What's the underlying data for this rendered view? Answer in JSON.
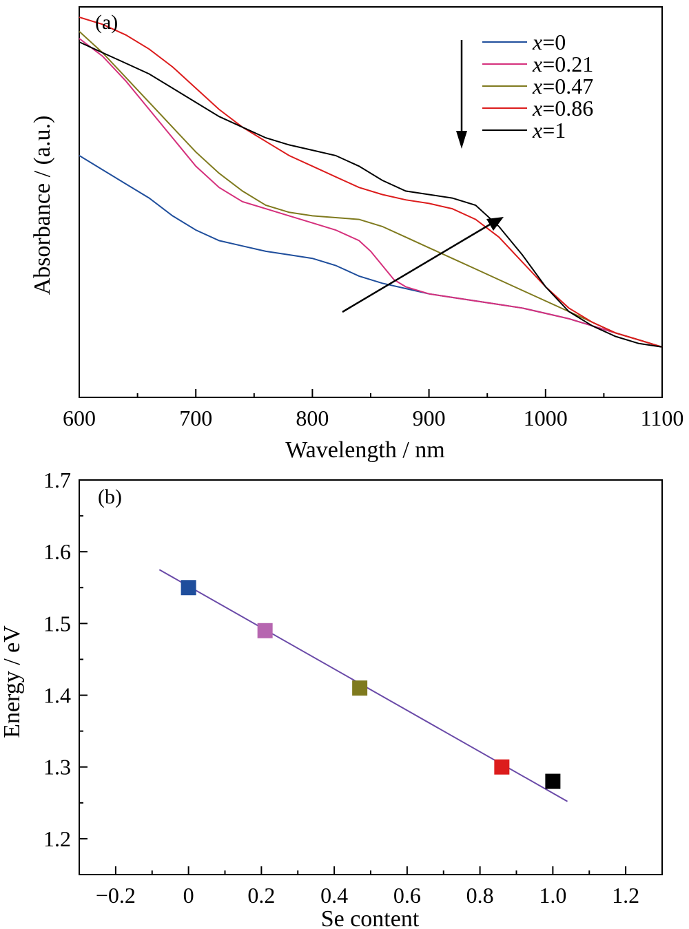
{
  "colors": {
    "blue": "#1f4e9c",
    "magenta": "#d5307c",
    "olive": "#7f7a1e",
    "red": "#dc1c1c",
    "black": "#000000",
    "fit_line": "#6a4aa8",
    "marker_magenta": "#b666b0"
  },
  "chart_data": [
    {
      "type": "line",
      "panel_label": "(a)",
      "xlabel": "Wavelength / nm",
      "ylabel": "Absorbance / (a.u.)",
      "xlim": [
        600,
        1100
      ],
      "ylim": [
        0,
        1
      ],
      "x_ticks": [
        "600",
        "700",
        "800",
        "900",
        "1000",
        "1100"
      ],
      "y_ticks": [],
      "legend_position": "top-right",
      "annotations": [
        "downward arrow beside legend",
        "diagonal arrow from (825 nm) to (960 nm) pointing upper-right"
      ],
      "series": [
        {
          "name": "x=0",
          "legend_prefix": "x",
          "legend_value": "=0",
          "color": "#1f4e9c",
          "x": [
            600,
            620,
            640,
            660,
            680,
            700,
            720,
            740,
            760,
            780,
            800,
            820,
            840,
            860,
            880,
            900,
            920,
            940,
            960,
            980,
            1000,
            1020,
            1040,
            1060,
            1080,
            1100
          ],
          "y": [
            0.61,
            0.57,
            0.53,
            0.49,
            0.44,
            0.4,
            0.37,
            0.355,
            0.34,
            0.33,
            0.32,
            0.3,
            0.27,
            0.25,
            0.235,
            0.22,
            0.21,
            0.2,
            0.19,
            0.18,
            0.165,
            0.15,
            0.13,
            0.11,
            0.09,
            0.07
          ]
        },
        {
          "name": "x=0.21",
          "legend_prefix": "x",
          "legend_value": "=0.21",
          "color": "#d5307c",
          "x": [
            600,
            620,
            640,
            660,
            680,
            700,
            720,
            740,
            760,
            780,
            800,
            820,
            840,
            850,
            860,
            870,
            880,
            900,
            920,
            940,
            960,
            980,
            1000,
            1020,
            1040,
            1060,
            1080,
            1100
          ],
          "y": [
            0.94,
            0.89,
            0.82,
            0.74,
            0.66,
            0.58,
            0.52,
            0.48,
            0.46,
            0.44,
            0.42,
            0.4,
            0.37,
            0.34,
            0.3,
            0.26,
            0.24,
            0.22,
            0.21,
            0.2,
            0.19,
            0.18,
            0.165,
            0.15,
            0.13,
            0.11,
            0.09,
            0.07
          ]
        },
        {
          "name": "x=0.47",
          "legend_prefix": "x",
          "legend_value": "=0.47",
          "color": "#7f7a1e",
          "x": [
            600,
            620,
            640,
            660,
            680,
            700,
            720,
            740,
            760,
            780,
            800,
            820,
            840,
            860,
            880,
            900,
            920,
            940,
            960,
            980,
            1000,
            1020,
            1040,
            1060,
            1080,
            1100
          ],
          "y": [
            0.96,
            0.9,
            0.83,
            0.76,
            0.69,
            0.62,
            0.56,
            0.51,
            0.47,
            0.45,
            0.44,
            0.435,
            0.43,
            0.41,
            0.38,
            0.35,
            0.32,
            0.29,
            0.26,
            0.23,
            0.2,
            0.17,
            0.14,
            0.11,
            0.09,
            0.07
          ]
        },
        {
          "name": "x=0.86",
          "legend_prefix": "x",
          "legend_value": "=0.86",
          "color": "#dc1c1c",
          "x": [
            600,
            620,
            640,
            660,
            680,
            700,
            720,
            740,
            760,
            780,
            800,
            820,
            840,
            860,
            880,
            900,
            920,
            940,
            960,
            980,
            1000,
            1020,
            1040,
            1060,
            1080,
            1100
          ],
          "y": [
            1.0,
            0.98,
            0.95,
            0.91,
            0.86,
            0.8,
            0.74,
            0.69,
            0.65,
            0.61,
            0.58,
            0.55,
            0.52,
            0.5,
            0.485,
            0.475,
            0.46,
            0.43,
            0.38,
            0.31,
            0.24,
            0.18,
            0.14,
            0.11,
            0.09,
            0.07
          ]
        },
        {
          "name": "x=1",
          "legend_prefix": "x",
          "legend_value": "=1",
          "color": "#000000",
          "x": [
            600,
            620,
            640,
            660,
            680,
            700,
            720,
            740,
            760,
            780,
            800,
            820,
            840,
            860,
            880,
            900,
            920,
            940,
            960,
            980,
            1000,
            1020,
            1040,
            1060,
            1080,
            1100
          ],
          "y": [
            0.93,
            0.9,
            0.87,
            0.84,
            0.8,
            0.76,
            0.72,
            0.69,
            0.66,
            0.64,
            0.625,
            0.61,
            0.58,
            0.54,
            0.51,
            0.5,
            0.49,
            0.47,
            0.41,
            0.33,
            0.24,
            0.17,
            0.13,
            0.1,
            0.08,
            0.07
          ]
        }
      ]
    },
    {
      "type": "scatter",
      "panel_label": "(b)",
      "xlabel": "Se content",
      "ylabel": "Energy / eV",
      "xlim": [
        -0.3,
        1.3
      ],
      "ylim": [
        1.15,
        1.7
      ],
      "x_ticks": [
        "−0.2",
        "0",
        "0.2",
        "0.4",
        "0.6",
        "0.8",
        "1.0",
        "1.2"
      ],
      "x_tick_values": [
        -0.2,
        0,
        0.2,
        0.4,
        0.6,
        0.8,
        1.0,
        1.2
      ],
      "y_ticks": [
        "1.2",
        "1.3",
        "1.4",
        "1.5",
        "1.6",
        "1.7"
      ],
      "y_tick_values": [
        1.2,
        1.3,
        1.4,
        1.5,
        1.6,
        1.7
      ],
      "points": [
        {
          "x": 0,
          "y": 1.55,
          "color": "#1f4e9c"
        },
        {
          "x": 0.21,
          "y": 1.49,
          "color": "#b666b0"
        },
        {
          "x": 0.47,
          "y": 1.41,
          "color": "#7f7a1e"
        },
        {
          "x": 0.86,
          "y": 1.3,
          "color": "#dc1c1c"
        },
        {
          "x": 1.0,
          "y": 1.28,
          "color": "#000000"
        }
      ],
      "fit_line": {
        "x": [
          -0.08,
          1.04
        ],
        "y": [
          1.575,
          1.252
        ],
        "color": "#6a4aa8"
      }
    }
  ]
}
